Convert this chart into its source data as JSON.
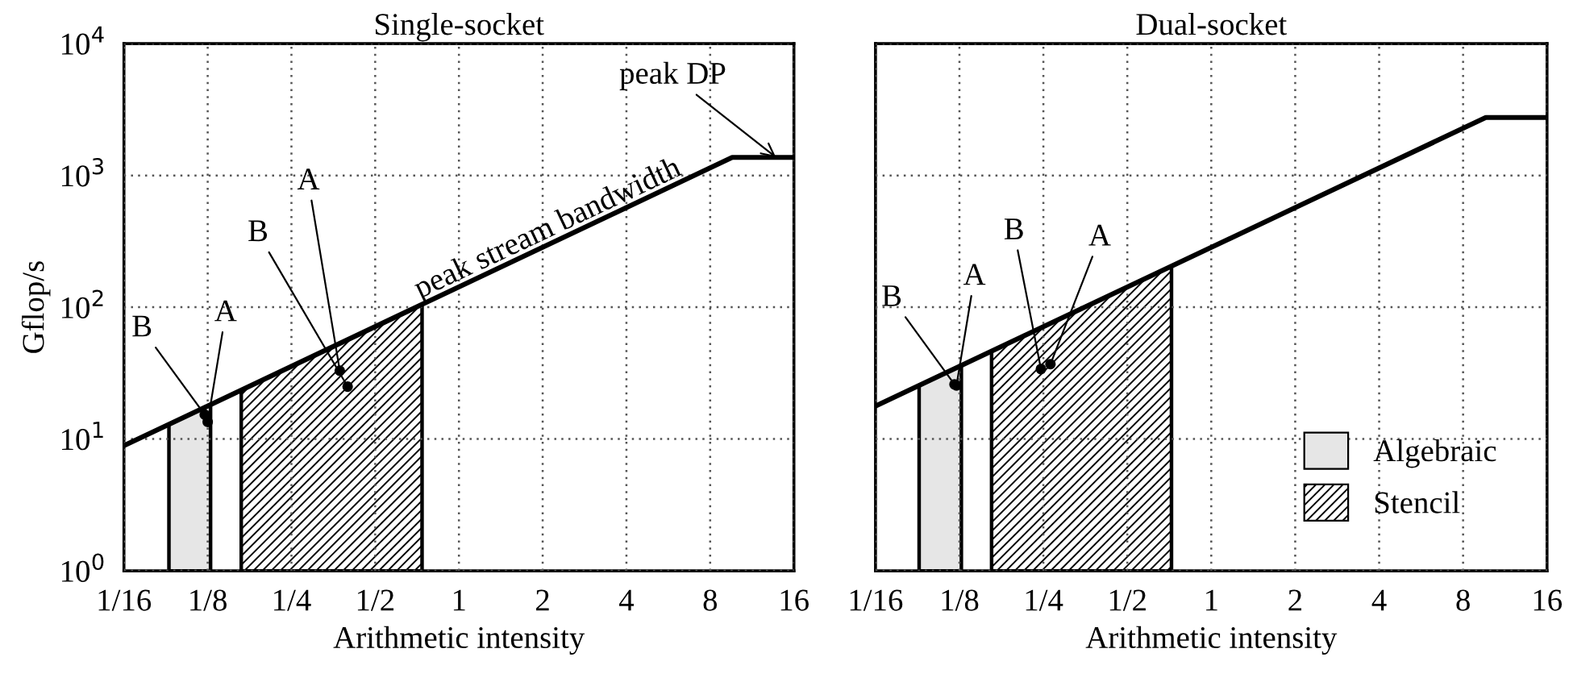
{
  "chart_data": [
    {
      "type": "line",
      "title": "Single-socket",
      "xlabel": "Arithmetic intensity",
      "ylabel": "Gflop/s",
      "log": "xy",
      "grid": true,
      "legend": false,
      "xlim": [
        0.0625,
        16
      ],
      "ylim": [
        1,
        10000
      ],
      "xticks": [
        {
          "value": 0.0625,
          "label": "1/16"
        },
        {
          "value": 0.125,
          "label": "1/8"
        },
        {
          "value": 0.25,
          "label": "1/4"
        },
        {
          "value": 0.5,
          "label": "1/2"
        },
        1,
        2,
        4,
        8,
        16
      ],
      "yticks": [
        {
          "value": 1,
          "label": "10$^{0}$"
        },
        {
          "value": 10,
          "label": "10$^{1}$"
        },
        {
          "value": 100,
          "label": "10$^{2}$"
        },
        {
          "value": 1000,
          "label": "10$^{3}$"
        },
        {
          "value": 10000,
          "label": "10$^{4}$"
        }
      ],
      "series": [
        {
          "type": "area",
          "color": "#e6e6e6",
          "x": [
            0.0907,
            0.128
          ],
          "values": [
            12.9,
            18.2
          ]
        },
        {
          "type": "area",
          "color": "#000000",
          "x": [
            0.165,
            0.737
          ],
          "values": [
            23.5,
            105
          ]
        },
        {
          "color": "#000000",
          "x": [
            0.0625,
            9.6,
            16
          ],
          "values": [
            8.9,
            1370,
            1370
          ]
        },
        {
          "type": "scatter",
          "color": "#000000",
          "x": [
            0.122,
            0.125,
            0.398,
            0.373
          ],
          "values": [
            15.3,
            13.5,
            25,
            33
          ]
        }
      ],
      "annotations": [
        {
          "text": "B",
          "x": 0.122,
          "y": 15.3
        },
        {
          "text": "A",
          "x": 0.125,
          "y": 13.5
        },
        {
          "text": "B",
          "x": 0.398,
          "y": 25
        },
        {
          "text": "A",
          "x": 0.373,
          "y": 33
        },
        {
          "text": "peak DP",
          "x": 13.8,
          "y": 1370
        },
        {
          "text": "peak stream bandwidth",
          "x": 2.2,
          "y": 310
        }
      ]
    },
    {
      "type": "line",
      "title": "Dual-socket",
      "xlabel": "Arithmetic intensity",
      "log": "xy",
      "grid": true,
      "legend": "bottom right",
      "tick_labels": "x",
      "xlim": [
        0.0625,
        16
      ],
      "ylim": [
        1,
        10000
      ],
      "xticks": [
        {
          "value": 0.0625,
          "label": "1/16"
        },
        {
          "value": 0.125,
          "label": "1/8"
        },
        {
          "value": 0.25,
          "label": "1/4"
        },
        {
          "value": 0.5,
          "label": "1/2"
        },
        1,
        2,
        4,
        8,
        16
      ],
      "yticks": [
        {
          "value": 1,
          "label": null
        },
        {
          "value": 10,
          "label": null
        },
        {
          "value": 100,
          "label": null
        },
        {
          "value": 1000,
          "label": null
        },
        {
          "value": 10000,
          "label": null
        }
      ],
      "series": [
        {
          "type": "area",
          "name": "Algebraic",
          "color": "#e6e6e6",
          "x": [
            0.0896,
            0.127
          ],
          "values": [
            25.5,
            36.2
          ]
        },
        {
          "type": "area",
          "name": "Stencil",
          "color": "#000000",
          "x": [
            0.163,
            0.72
          ],
          "values": [
            46.5,
            205
          ]
        },
        {
          "color": "#000000",
          "x": [
            0.0625,
            9.65,
            16
          ],
          "values": [
            17.8,
            2750,
            2750
          ]
        },
        {
          "type": "scatter",
          "color": "#000000",
          "x": [
            0.12,
            0.122,
            0.245,
            0.265
          ],
          "values": [
            26,
            25.5,
            34,
            37
          ]
        }
      ],
      "annotations": [
        {
          "text": "B",
          "x": 0.12,
          "y": 26
        },
        {
          "text": "A",
          "x": 0.122,
          "y": 25.5
        },
        {
          "text": "B",
          "x": 0.245,
          "y": 34
        },
        {
          "text": "A",
          "x": 0.265,
          "y": 37
        }
      ]
    }
  ]
}
